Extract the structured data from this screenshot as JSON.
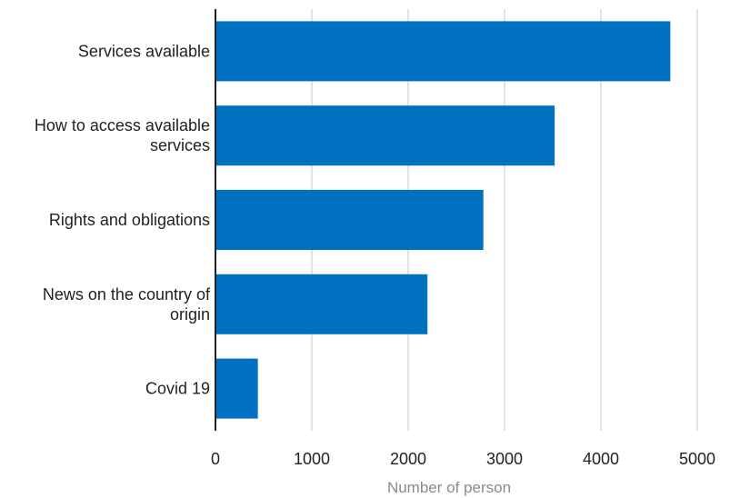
{
  "chart_data": {
    "type": "bar",
    "orientation": "horizontal",
    "categories": [
      "Services available",
      "How to access available services",
      "Rights and obligations",
      "News on the country of origin",
      "Covid 19"
    ],
    "category_lines": [
      [
        "Services available"
      ],
      [
        "How to access available",
        "services"
      ],
      [
        "Rights and obligations"
      ],
      [
        "News on the country of",
        "origin"
      ],
      [
        "Covid 19"
      ]
    ],
    "values": [
      4720,
      3520,
      2780,
      2200,
      440
    ],
    "xlim": [
      0,
      5000
    ],
    "xticks": [
      0,
      1000,
      2000,
      3000,
      4000,
      5000
    ],
    "xtick_labels": [
      "0",
      "1000",
      "2000",
      "3000",
      "4000",
      "5000"
    ],
    "xlabel": "Number of person",
    "title": "",
    "grid": "vertical",
    "bar_color": "#0070c0"
  }
}
